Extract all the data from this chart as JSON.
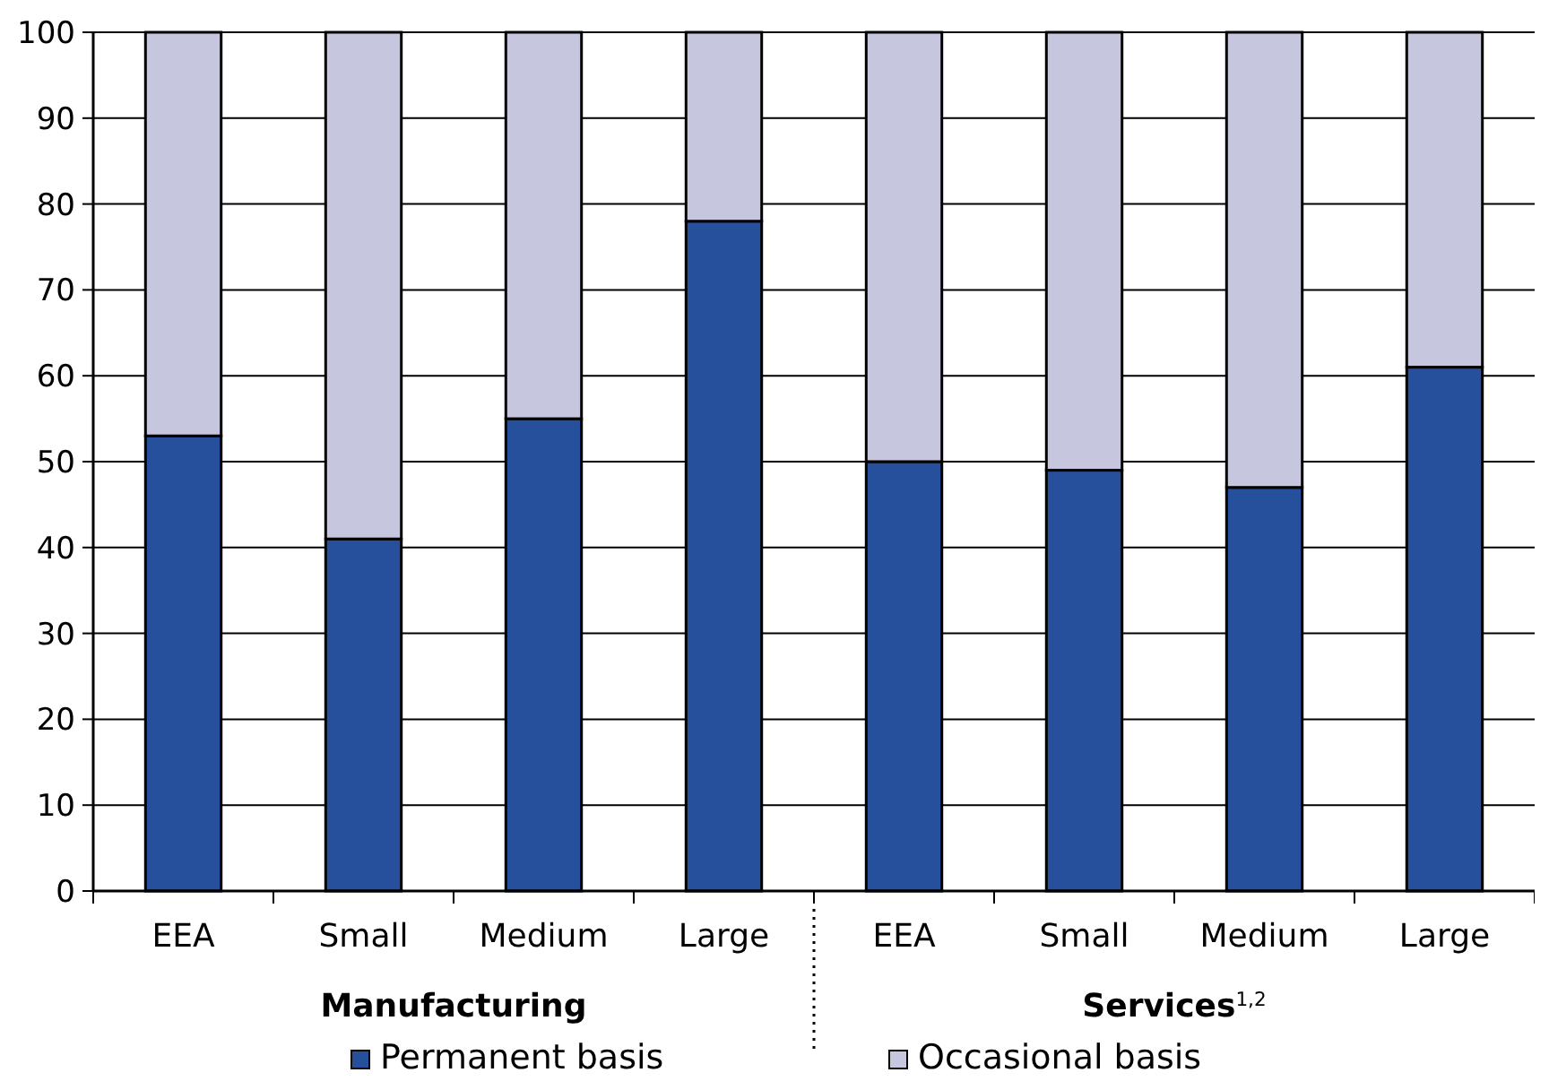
{
  "chart_data": {
    "type": "bar",
    "stacked": true,
    "categories": [
      "EEA",
      "Small",
      "Medium",
      "Large",
      "EEA",
      "Small",
      "Medium",
      "Large"
    ],
    "series": [
      {
        "name": "Permanent basis",
        "color": "#26509b",
        "values": [
          53,
          41,
          55,
          78,
          50,
          49,
          47,
          61
        ]
      },
      {
        "name": "Occasional basis",
        "color": "#c6c6df",
        "values": [
          47,
          59,
          45,
          22,
          50,
          51,
          53,
          39
        ]
      }
    ],
    "ylim": [
      0,
      100
    ],
    "yticks": [
      0,
      10,
      20,
      30,
      40,
      50,
      60,
      70,
      80,
      90,
      100
    ],
    "grid": "y",
    "legend": "bottom",
    "annotations": [
      "Manufacturing",
      "Services$^{1,2}$"
    ]
  }
}
